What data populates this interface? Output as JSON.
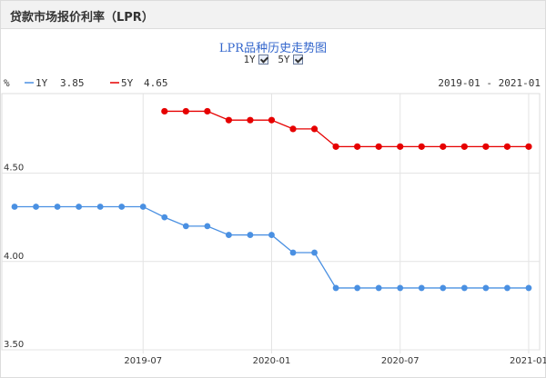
{
  "header": {
    "title": "贷款市场报价利率（LPR）"
  },
  "chart_title": "LPR品种历史走势图",
  "toggles": [
    {
      "label": "1Y",
      "checked": true
    },
    {
      "label": "5Y",
      "checked": true
    }
  ],
  "legend_bar": {
    "unit": "%",
    "items": [
      {
        "label": "1Y",
        "value": "3.85",
        "color": "#4a90e2"
      },
      {
        "label": "5Y",
        "value": "4.65",
        "color": "#e60000"
      }
    ],
    "range": "2019-01 - 2021-01"
  },
  "chart_data": {
    "type": "line",
    "x": [
      "2019-01",
      "2019-02",
      "2019-03",
      "2019-04",
      "2019-05",
      "2019-06",
      "2019-07",
      "2019-08",
      "2019-09",
      "2019-10",
      "2019-11",
      "2019-12",
      "2020-01",
      "2020-02",
      "2020-03",
      "2020-04",
      "2020-05",
      "2020-06",
      "2020-07",
      "2020-08",
      "2020-09",
      "2020-10",
      "2020-11",
      "2020-12",
      "2021-01"
    ],
    "series": [
      {
        "name": "1Y",
        "color": "#4a90e2",
        "values": [
          4.31,
          4.31,
          4.31,
          4.31,
          4.31,
          4.31,
          4.31,
          4.25,
          4.2,
          4.2,
          4.15,
          4.15,
          4.15,
          4.05,
          4.05,
          3.85,
          3.85,
          3.85,
          3.85,
          3.85,
          3.85,
          3.85,
          3.85,
          3.85,
          3.85
        ]
      },
      {
        "name": "5Y",
        "color": "#e60000",
        "values": [
          null,
          null,
          null,
          null,
          null,
          null,
          null,
          4.85,
          4.85,
          4.85,
          4.8,
          4.8,
          4.8,
          4.75,
          4.75,
          4.65,
          4.65,
          4.65,
          4.65,
          4.65,
          4.65,
          4.65,
          4.65,
          4.65,
          4.65
        ]
      }
    ],
    "ylim": [
      3.5,
      4.95
    ],
    "yticks": [
      "4.50",
      "4.00",
      "3.50"
    ],
    "xticks": [
      "2019-07",
      "2020-01",
      "2020-07",
      "2021-01"
    ],
    "grid": true
  }
}
